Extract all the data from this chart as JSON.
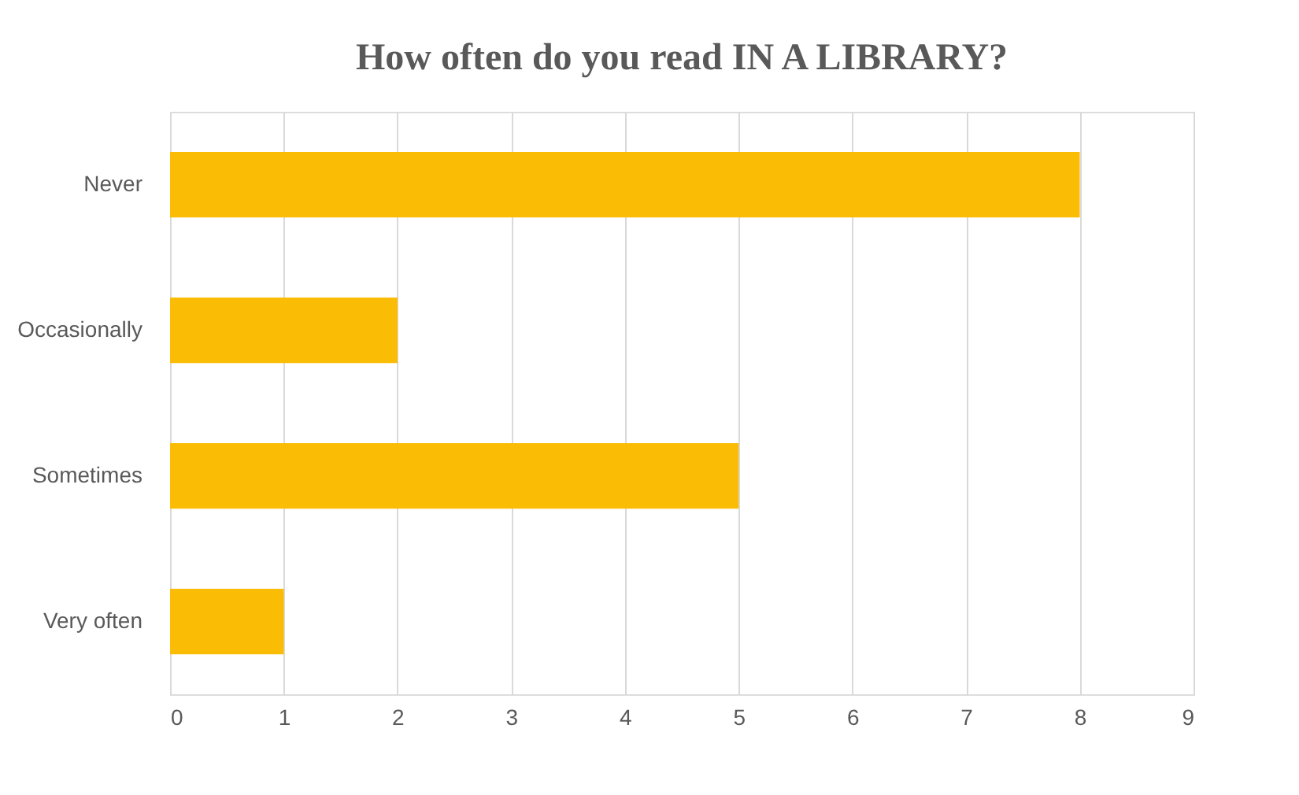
{
  "chart_data": {
    "type": "bar",
    "orientation": "horizontal",
    "title": "How often do you read IN A LIBRARY?",
    "categories": [
      "Never",
      "Occasionally",
      "Sometimes",
      "Very often"
    ],
    "values": [
      8,
      2,
      5,
      1
    ],
    "color": "#fbbc05",
    "xlim": [
      0,
      9
    ],
    "xticks": [
      0,
      1,
      2,
      3,
      4,
      5,
      6,
      7,
      8,
      9
    ],
    "grid": "x"
  }
}
